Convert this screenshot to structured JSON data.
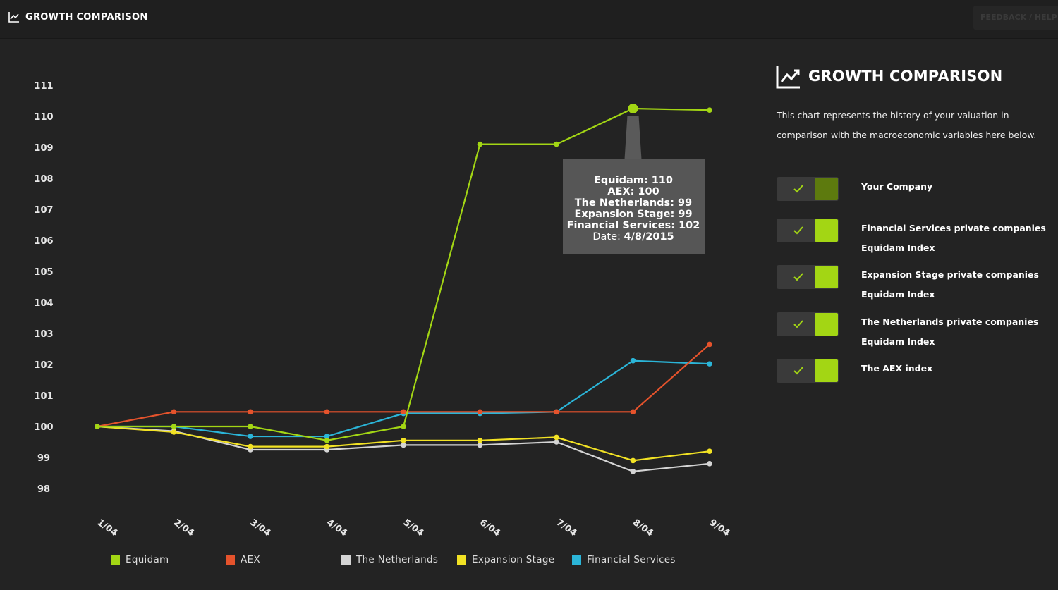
{
  "header": {
    "title": "GROWTH COMPARISON",
    "feedback_label": "FEEDBACK / HELP"
  },
  "panel": {
    "title": "GROWTH COMPARISON",
    "description": "This chart represents the history of your valuation in comparison with the macroeconomic variables here below.",
    "toggles": [
      {
        "line1": "Your Company",
        "line2": "",
        "knob_color": "#5d7a0e"
      },
      {
        "line1": "Financial Services private companies",
        "line2": "Equidam Index",
        "knob_color": "#a3d614"
      },
      {
        "line1": "Expansion Stage private companies",
        "line2": "Equidam Index",
        "knob_color": "#a3d614"
      },
      {
        "line1": "The Netherlands private companies",
        "line2": "Equidam Index",
        "knob_color": "#a3d614"
      },
      {
        "line1": "The AEX index",
        "line2": "",
        "knob_color": "#a3d614"
      }
    ]
  },
  "tooltip": {
    "lines": [
      "Equidam: 110",
      "AEX: 100",
      "The Netherlands: 99",
      "Expansion Stage: 99",
      "Financial Services: 102"
    ],
    "date_label": "Date:",
    "date_value": "4/8/2015"
  },
  "chart_data": {
    "type": "line",
    "title": "GROWTH COMPARISON",
    "x": [
      "1/04",
      "2/04",
      "3/04",
      "4/04",
      "5/04",
      "6/04",
      "7/04",
      "8/04",
      "9/04"
    ],
    "ylim": [
      98,
      111
    ],
    "yticks": [
      98,
      99,
      100,
      101,
      102,
      103,
      104,
      105,
      106,
      107,
      108,
      109,
      110,
      111
    ],
    "grid": false,
    "legend_position": "bottom",
    "series": [
      {
        "name": "Equidam",
        "color": "#a3d614",
        "values": [
          100,
          100,
          100,
          99.55,
          100,
          109.1,
          109.1,
          110.25,
          110.2
        ]
      },
      {
        "name": "AEX",
        "color": "#e5532c",
        "values": [
          100,
          100.47,
          100.47,
          100.47,
          100.47,
          100.47,
          100.47,
          100.47,
          102.65
        ]
      },
      {
        "name": "The Netherlands",
        "color": "#d4d4d4",
        "values": [
          100,
          99.85,
          99.25,
          99.25,
          99.4,
          99.4,
          99.5,
          98.55,
          98.8
        ]
      },
      {
        "name": "Expansion Stage",
        "color": "#f2e224",
        "values": [
          100,
          99.82,
          99.35,
          99.35,
          99.55,
          99.55,
          99.65,
          98.9,
          99.2
        ]
      },
      {
        "name": "Financial Services",
        "color": "#2bb5d8",
        "values": [
          100,
          100,
          99.68,
          99.68,
          100.42,
          100.42,
          100.47,
          102.12,
          102.02
        ]
      }
    ]
  }
}
